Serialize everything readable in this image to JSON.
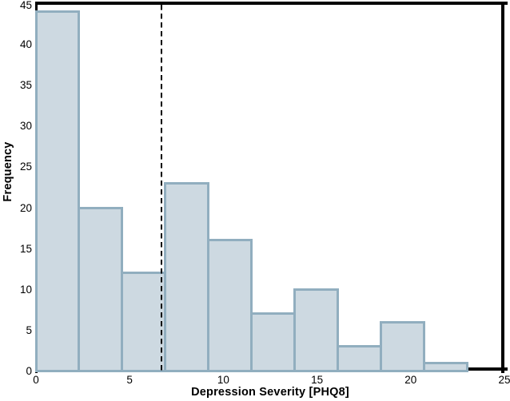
{
  "chart_data": {
    "type": "bar",
    "subtype": "histogram",
    "title": "",
    "xlabel": "Depression Severity [PHQ8]",
    "ylabel": "Frequency",
    "bin_edges": [
      0,
      2.3,
      4.6,
      6.9,
      9.2,
      11.5,
      13.8,
      16.1,
      18.4,
      20.7,
      23
    ],
    "counts": [
      44,
      20,
      12,
      23,
      16,
      7,
      10,
      3,
      6,
      1
    ],
    "x_ticks": [
      0,
      5,
      10,
      15,
      20,
      25
    ],
    "y_ticks": [
      0,
      5,
      10,
      15,
      20,
      25,
      30,
      35,
      40,
      45
    ],
    "xlim": [
      0,
      25
    ],
    "ylim": [
      0,
      45
    ],
    "grid": false,
    "legend": "none",
    "vline": {
      "x": 6.7,
      "style": "dashed",
      "color": "#000000"
    },
    "colors": {
      "bar_fill": "#cdd9e1",
      "bar_border": "#91aebf",
      "spine": "#000000",
      "dashed_line": "#000000",
      "background": "#ffffff",
      "text": "#000000"
    }
  }
}
